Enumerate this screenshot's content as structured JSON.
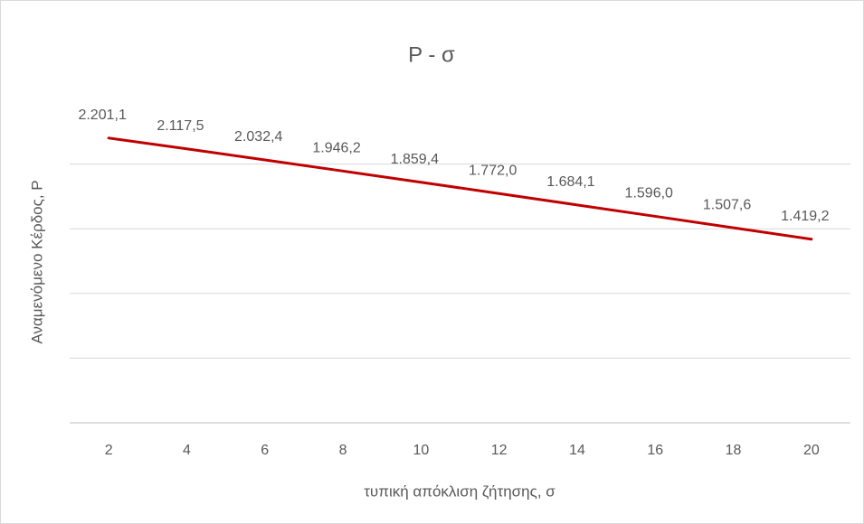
{
  "chart_data": {
    "type": "line",
    "title": "P - σ",
    "x_label": "τυπική απόκλιση ζήτησης, σ",
    "y_label": "Αναμενόμενο Κέρδος, P",
    "categories": [
      2,
      4,
      6,
      8,
      10,
      12,
      14,
      16,
      18,
      20
    ],
    "series": [
      {
        "name": "P",
        "color": "#c00000",
        "values": [
          2201.1,
          2117.5,
          2032.4,
          1946.2,
          1859.4,
          1772.0,
          1684.1,
          1596.0,
          1507.6,
          1419.2
        ],
        "value_labels": [
          "2.201,1",
          "2.117,5",
          "2.032,4",
          "1.946,2",
          "1.859,4",
          "1.772,0",
          "1.684,1",
          "1.596,0",
          "1.507,6",
          "1.419,2"
        ]
      }
    ],
    "ylim": [
      0,
      2500
    ],
    "yticks": [
      0,
      500,
      1000,
      1500,
      2000
    ],
    "grid": true
  }
}
